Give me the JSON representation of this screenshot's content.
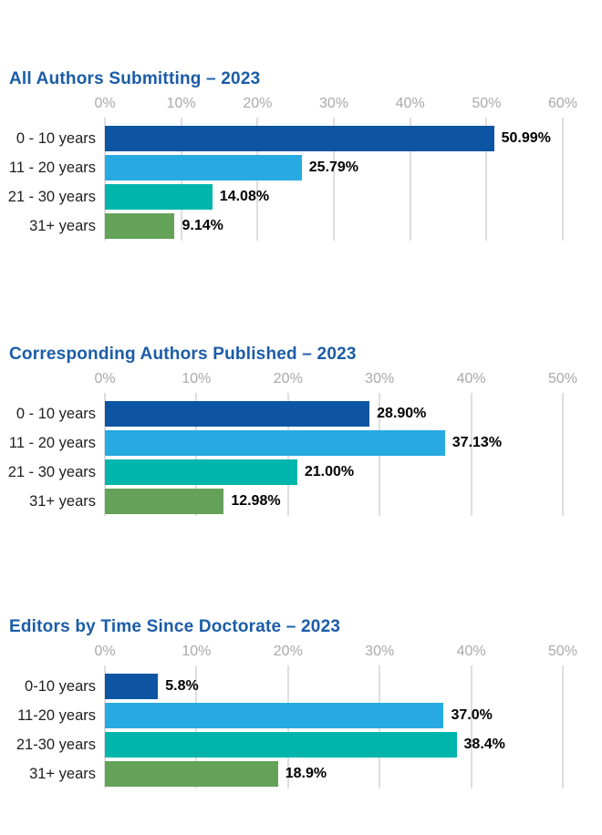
{
  "page": {
    "background": "#ffffff"
  },
  "colors": {
    "title": "#1B5CA8",
    "tick_label": "#A9A9A9",
    "gridline": "#DEDEDE",
    "category_label": "#1F1F1F",
    "value_label": "#000000",
    "bar_navy": "#0D55A2",
    "bar_lightblue": "#27AAE1",
    "bar_teal": "#00B6AC",
    "bar_green": "#64A259"
  },
  "chart_data": [
    {
      "type": "bar",
      "orientation": "horizontal",
      "title": "All Authors Submitting – 2023",
      "categories": [
        "0 - 10 years",
        "11 - 20 years",
        "21 - 30 years",
        "31+ years"
      ],
      "values": [
        50.99,
        25.79,
        14.08,
        9.14
      ],
      "value_labels": [
        "50.99%",
        "25.79%",
        "14.08%",
        "9.14%"
      ],
      "bar_colors": [
        "#0D55A2",
        "#27AAE1",
        "#00B6AC",
        "#64A259"
      ],
      "axis": {
        "min": 0,
        "max": 60,
        "tick_step": 10,
        "tick_labels": [
          "0%",
          "10%",
          "20%",
          "30%",
          "40%",
          "50%",
          "60%"
        ]
      },
      "grid": true,
      "legend": "none"
    },
    {
      "type": "bar",
      "orientation": "horizontal",
      "title": "Corresponding Authors Published – 2023",
      "categories": [
        "0 - 10 years",
        "11 - 20 years",
        "21 - 30 years",
        "31+ years"
      ],
      "values": [
        28.9,
        37.13,
        21.0,
        12.98
      ],
      "value_labels": [
        "28.90%",
        "37.13%",
        "21.00%",
        "12.98%"
      ],
      "bar_colors": [
        "#0D55A2",
        "#27AAE1",
        "#00B6AC",
        "#64A259"
      ],
      "axis": {
        "min": 0,
        "max": 50,
        "tick_step": 10,
        "tick_labels": [
          "0%",
          "10%",
          "20%",
          "30%",
          "40%",
          "50%"
        ]
      },
      "grid": true,
      "legend": "none"
    },
    {
      "type": "bar",
      "orientation": "horizontal",
      "title": "Editors by Time Since Doctorate – 2023",
      "categories": [
        "0-10 years",
        "11-20 years",
        "21-30 years",
        "31+ years"
      ],
      "values": [
        5.8,
        37.0,
        38.4,
        18.9
      ],
      "value_labels": [
        "5.8%",
        "37.0%",
        "38.4%",
        "18.9%"
      ],
      "bar_colors": [
        "#0D55A2",
        "#27AAE1",
        "#00B6AC",
        "#64A259"
      ],
      "axis": {
        "min": 0,
        "max": 50,
        "tick_step": 10,
        "tick_labels": [
          "0%",
          "10%",
          "20%",
          "30%",
          "40%",
          "50%"
        ]
      },
      "grid": true,
      "legend": "none"
    }
  ]
}
